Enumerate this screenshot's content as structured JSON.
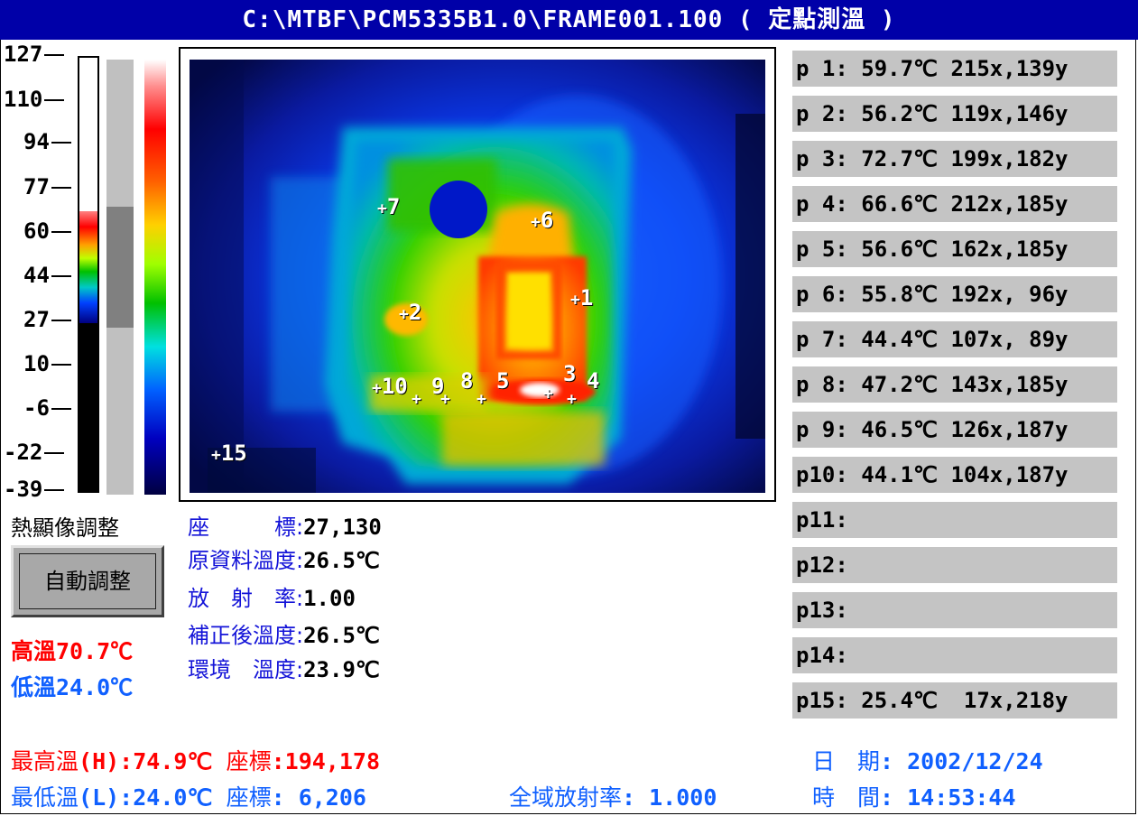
{
  "title": "C:\\MTBF\\PCM5335B1.0\\FRAME001.100 ( 定點測溫 )",
  "scale": {
    "labels": [
      "127",
      "110",
      "94",
      "77",
      "60",
      "44",
      "27",
      "10",
      "-6",
      "-22",
      "-39"
    ],
    "bar_range": {
      "min": -39,
      "max": 127,
      "color_low": 24.0,
      "color_high": 70.7
    },
    "window_range": {
      "low": 24.0,
      "high": 70.7
    }
  },
  "adjust": {
    "heading": "熱顯像調整",
    "auto_button": "自動調整",
    "high": "高溫70.7℃",
    "low": "低溫24.0℃"
  },
  "markers": [
    "1",
    "2",
    "3",
    "4",
    "5",
    "6",
    "7",
    "8",
    "9",
    "10",
    "15"
  ],
  "info": {
    "coord_label": "座　　　標:",
    "coord_value": "27,130",
    "raw_label": "原資料溫度:",
    "raw_value": "26.5℃",
    "emis_label": "放　射　率:",
    "emis_value": "1.00",
    "corr_label": "補正後溫度:",
    "corr_value": "26.5℃",
    "env_label": "環境　溫度:",
    "env_value": "23.9℃"
  },
  "points": [
    "p 1: 59.7℃ 215x,139y",
    "p 2: 56.2℃ 119x,146y",
    "p 3: 72.7℃ 199x,182y",
    "p 4: 66.6℃ 212x,185y",
    "p 5: 56.6℃ 162x,185y",
    "p 6: 55.8℃ 192x, 96y",
    "p 7: 44.4℃ 107x, 89y",
    "p 8: 47.2℃ 143x,185y",
    "p 9: 46.5℃ 126x,187y",
    "p10: 44.1℃ 104x,187y",
    "p11:",
    "p12:",
    "p13:",
    "p14:",
    "p15: 25.4℃  17x,218y"
  ],
  "footer": {
    "max_label": "最高溫",
    "max_value": "(H):74.9℃",
    "max_coord_label": "座標",
    "max_coord_value": ":194,178",
    "min_label": "最低溫",
    "min_value": "(L):24.0℃",
    "min_coord_label": "座標",
    "min_coord_value": ":  6,206",
    "global_emis_label": "全域放射率",
    "global_emis_value": ": 1.000",
    "date_label": "日　期",
    "date_value": ": 2002/12/24",
    "time_label": "時　間",
    "time_value": ": 14:53:44"
  },
  "colors": {
    "title_bg": "#0000a8",
    "label_blue": "#1414d8",
    "high_red": "#ff0000",
    "low_blue": "#1060ff",
    "panel_gray": "#c4c4c4"
  }
}
